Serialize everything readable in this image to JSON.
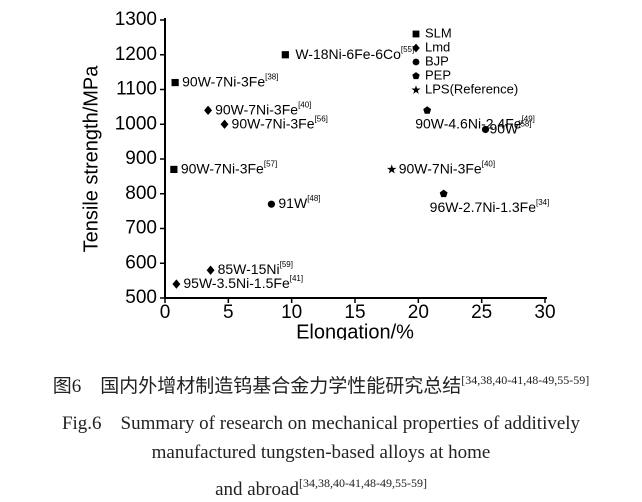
{
  "chart_data": {
    "type": "scatter",
    "xlabel": "Elongation/%",
    "ylabel": "Tensile strength/MPa",
    "xlim": [
      0,
      30
    ],
    "xticks": [
      0,
      5,
      10,
      15,
      20,
      25,
      30
    ],
    "ylim": [
      500,
      1300
    ],
    "yticks": [
      500,
      600,
      700,
      800,
      900,
      1000,
      1100,
      1200,
      1300
    ],
    "legend": "upper right",
    "series": [
      {
        "name": "SLM",
        "marker": "square",
        "color": "#000000",
        "x": [
          0.8,
          9.5,
          0.7
        ],
        "y": [
          1120,
          1200,
          870
        ],
        "labels": [
          "90W-7Ni-3Fe",
          "W-18Ni-6Fe-6Co",
          "90W-7Ni-3Fe"
        ],
        "refs": [
          "[38]",
          "[55]",
          "[57]"
        ]
      },
      {
        "name": "Lmd",
        "marker": "diamond",
        "color": "#000000",
        "x": [
          3.4,
          4.7,
          3.6,
          0.9
        ],
        "y": [
          1040,
          1000,
          580,
          540
        ],
        "labels": [
          "90W-7Ni-3Fe",
          "90W-7Ni-3Fe",
          "85W-15Ni",
          "95W-3.5Ni-1.5Fe"
        ],
        "refs": [
          "[40]",
          "[56]",
          "[59]",
          "[41]"
        ]
      },
      {
        "name": "BJP",
        "marker": "circle",
        "color": "#000000",
        "x": [
          8.4,
          25.3
        ],
        "y": [
          770,
          985
        ],
        "labels": [
          "91W",
          "90W"
        ],
        "refs": [
          "[48]",
          "[58]"
        ]
      },
      {
        "name": "PEP",
        "marker": "pentagon",
        "color": "#000000",
        "x": [
          20.7,
          22.0
        ],
        "y": [
          1040,
          800
        ],
        "labels": [
          "90W-4.6Ni-2.4Fe",
          "96W-2.7Ni-1.3Fe"
        ],
        "refs": [
          "[49]",
          "[34]"
        ]
      },
      {
        "name": "LPS(Reference)",
        "marker": "star",
        "color": "#000000",
        "x": [
          17.9
        ],
        "y": [
          870
        ],
        "labels": [
          "90W-7Ni-3Fe"
        ],
        "refs": [
          "[40]"
        ]
      }
    ]
  },
  "caption": {
    "cn": "图6　国内外增材制造钨基合金力学性能研究总结",
    "cn_ref": "[34,38,40-41,48-49,55-59]",
    "en_lines": [
      "Fig.6　Summary of research on mechanical properties of additively",
      "manufactured tungsten-based alloys at home",
      "and abroad"
    ],
    "en_ref": "[34,38,40-41,48-49,55-59]"
  }
}
